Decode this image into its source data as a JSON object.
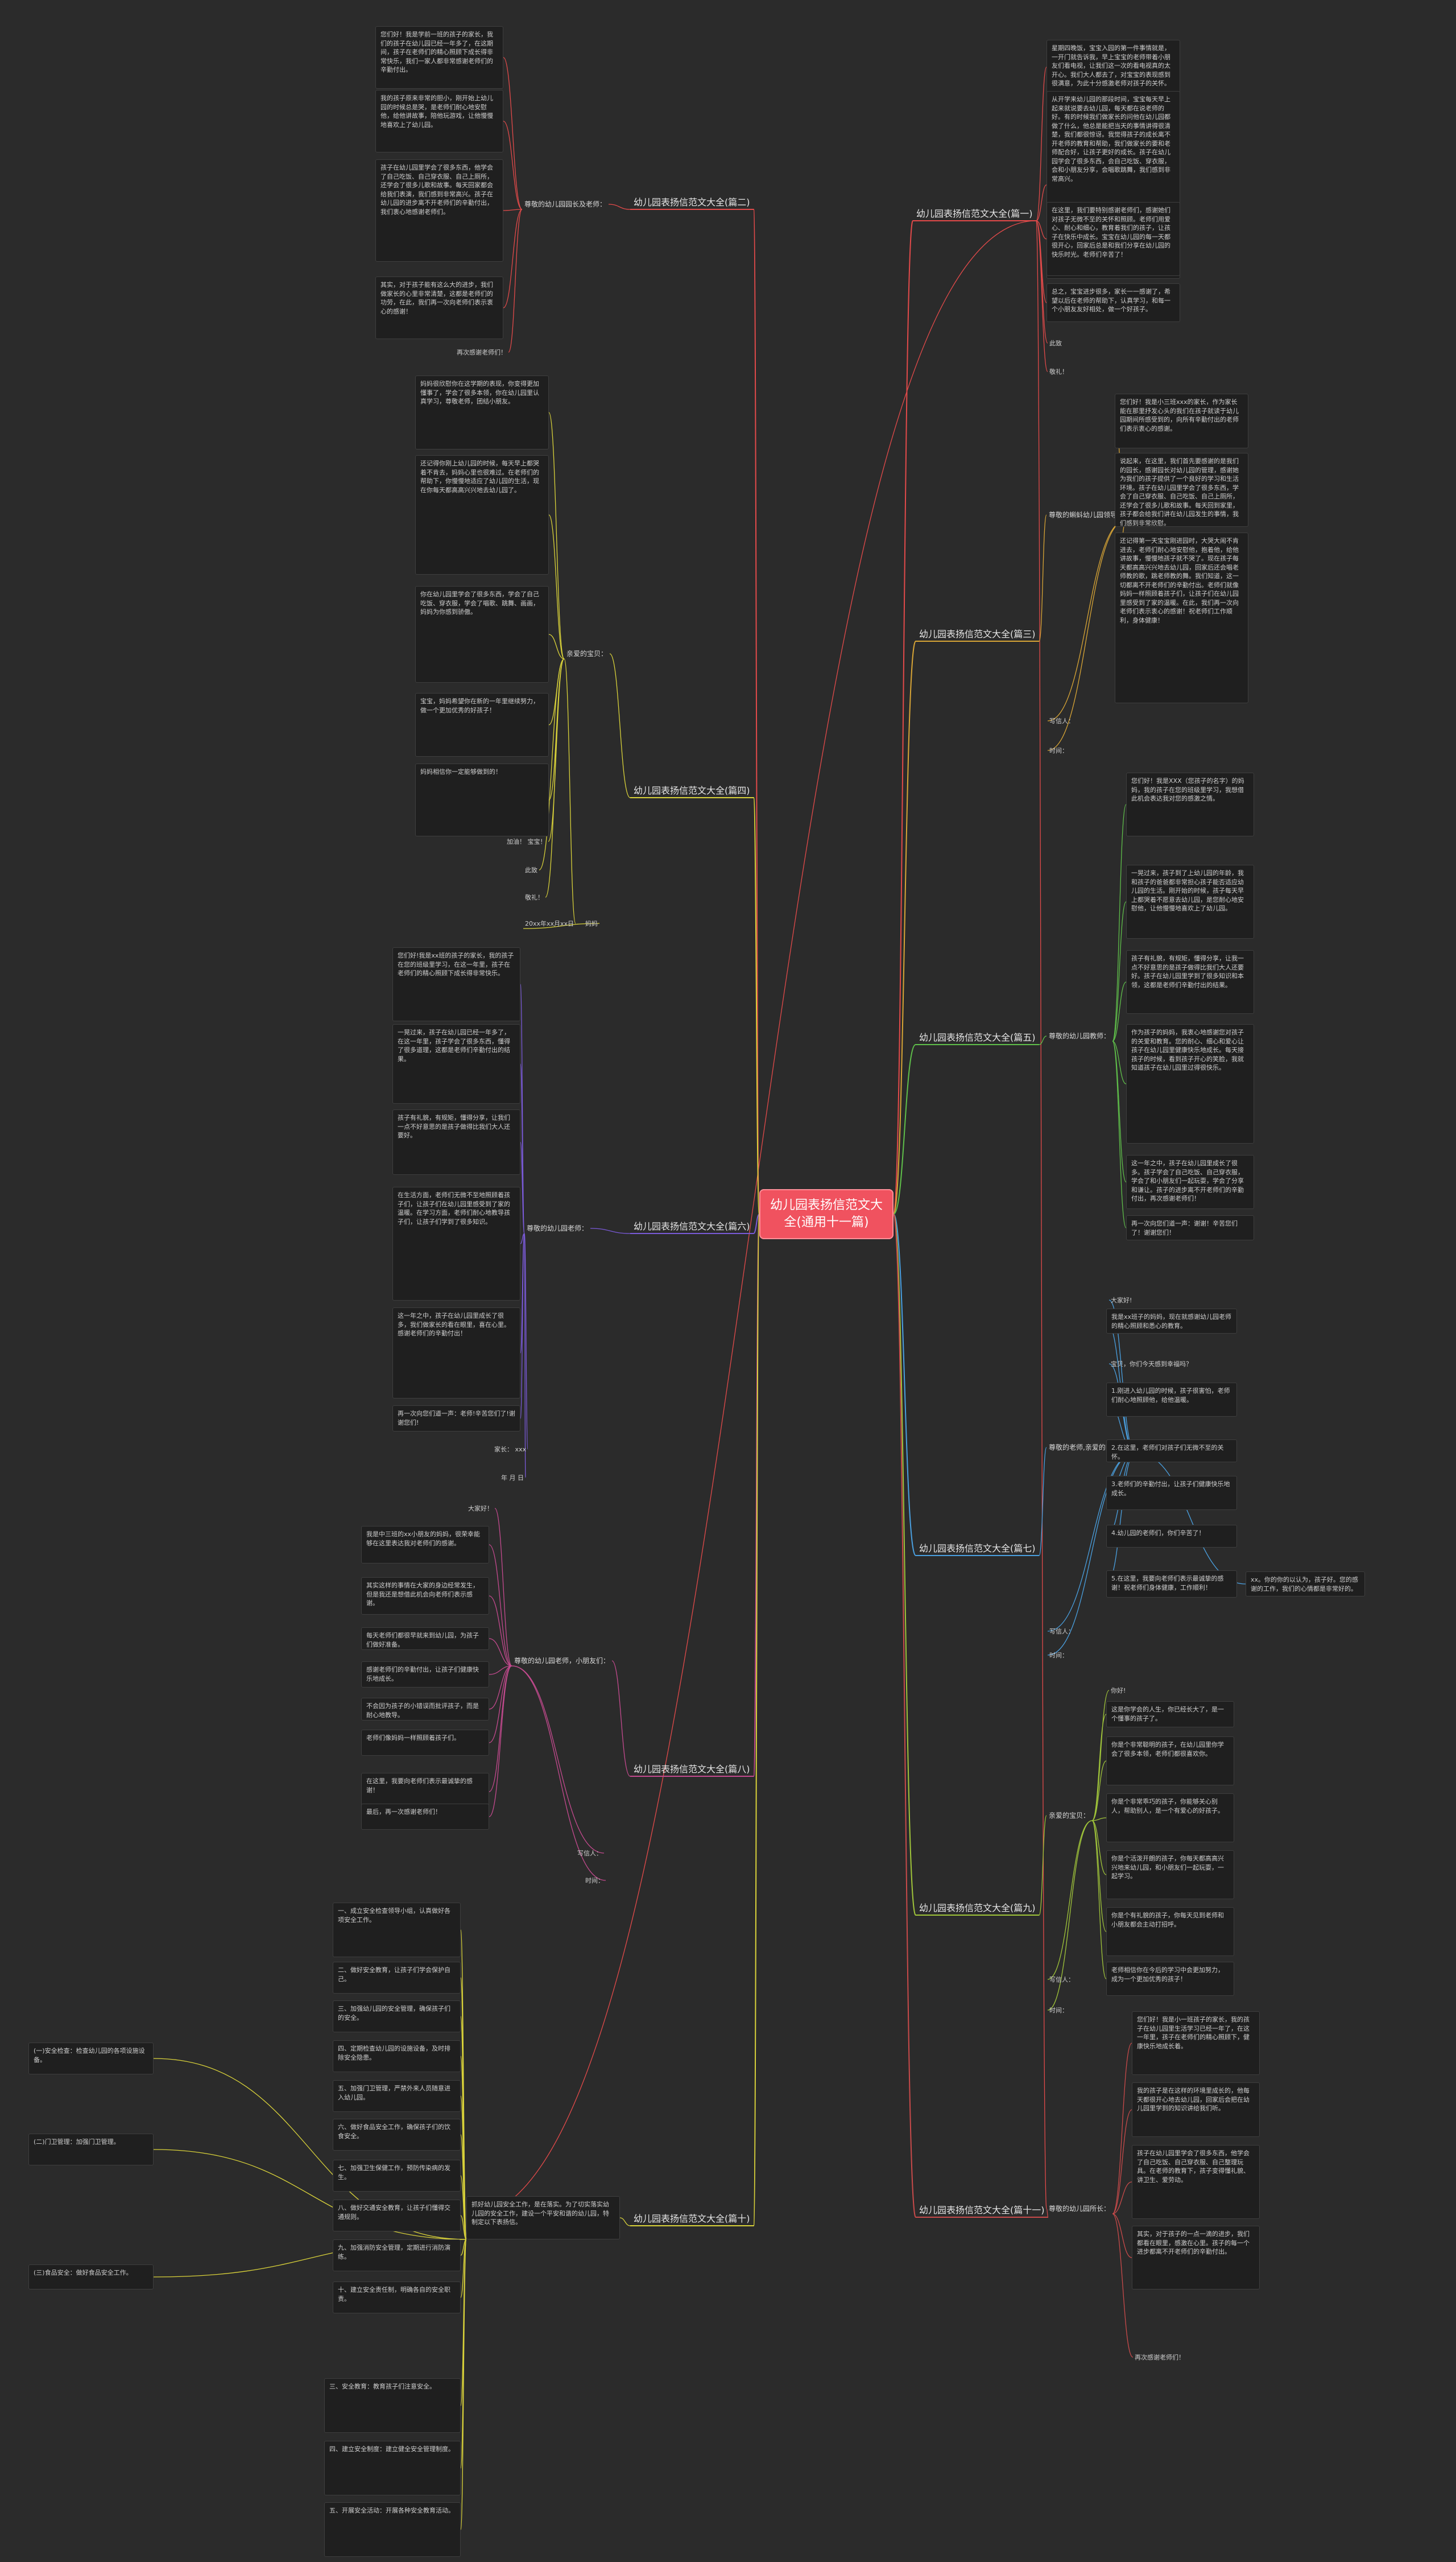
{
  "root": {
    "title": "幼儿园表扬信范文大全(通用十一篇)"
  },
  "colors": {
    "root": "#f0525f",
    "b1": "#e24a4a",
    "b2": "#e24a4a",
    "b3": "#d8a536",
    "b4": "#d9d23a",
    "b5": "#5fbf4a",
    "b6": "#7a5ad8",
    "b7": "#4aa0e0",
    "b8": "#c44a8f",
    "b9": "#a0c53a",
    "b10": "#d9d23a",
    "b11": "#c84a4a"
  },
  "branches": {
    "b1": {
      "label": "幼儿园表扬信范文大全(篇一)",
      "paragraphs": [
        "星期四晚饭，宝宝入园的第一件事情就是，一开门就告诉我，早上宝宝的老师带着小朋友们看电视，让我们这一次的看电视真的太开心。我们大人都去了，对宝宝的表现感到很满意，为此十分感激老师对孩子的关怀。",
        "从开学来幼儿园的那段时间，宝宝每天早上起来就说要去幼儿园，每天都在说老师的好。有的时候我们做家长的问他在幼儿园都做了什么，他总是能把当天的事情讲得很清楚，我们都很惊讶。我觉得孩子的成长离不开老师的教育和帮助，我们做家长的要和老师配合好，让孩子更好的成长。孩子在幼儿园学会了很多东西，会自己吃饭、穿衣服，会和小朋友分享，会唱歌跳舞，我们感到非常高兴。",
        "在这里，我们要特别感谢老师们，感谢她们对孩子无微不至的关怀和照顾。老师们用爱心、耐心和细心，教育着我们的孩子，让孩子在快乐中成长。宝宝在幼儿园的每一天都很开心，回家后总是和我们分享在幼儿园的快乐时光。老师们辛苦了！",
        "总之，宝宝进步很多，家长一一感谢了，希望以后在老师的帮助下，认真学习，和每一个小朋友友好相处，做一个好孩子。",
        "此致",
        "敬礼！"
      ]
    },
    "b3": {
      "label": "幼儿园表扬信范文大全(篇三)",
      "sub_label": "尊敬的蝌蚪幼儿园领导：",
      "paragraphs": [
        "您们好！我是小三班xxx的家长，作为家长能在那里抒发心头的我们在孩子就读于幼儿园期间所感受到的，向所有辛勤付出的老师们表示衷心的感谢。",
        "说起来，在这里，我们首先要感谢的是我们的园长，感谢园长对幼儿园的管理，感谢她为我们的孩子提供了一个良好的学习和生活环境。孩子在幼儿园里学会了很多东西，学会了自己穿衣服、自己吃饭、自己上厕所，还学会了很多儿歌和故事。每天回到家里，孩子都会给我们讲在幼儿园发生的事情，我们感到非常欣慰。",
        "还记得第一天宝宝刚进园时，大哭大闹不肯进去，老师们耐心地安慰他，抱着他，给他讲故事，慢慢地孩子就不哭了。现在孩子每天都高高兴兴地去幼儿园，回家后还会唱老师教的歌，跳老师教的舞。我们知道，这一切都离不开老师们的辛勤付出。老师们就像妈妈一样照顾着孩子们，让孩子们在幼儿园里感受到了家的温暖。在此，我们再一次向老师们表示衷心的感谢！祝老师们工作顺利，身体健康！"
      ],
      "writer": "写信人：",
      "time": "时间："
    },
    "b5": {
      "label": "幼儿园表扬信范文大全(篇五)",
      "sub_label": "尊敬的幼儿园教师：",
      "paragraphs": [
        "您们好！我是XXX（您孩子的名字）的妈妈，我的孩子在您的班级里学习，我想借此机会表达我对您的感激之情。",
        "一晃过来，孩子到了上幼儿园的年龄，我和孩子的爸爸都非常担心孩子能否适应幼儿园的生活。刚开始的时候，孩子每天早上都哭着不愿意去幼儿园，是您耐心地安慰他，让他慢慢地喜欢上了幼儿园。",
        "孩子有礼貌，有规矩，懂得分享，让我一点不好意思的是孩子做得比我们大人还要好。孩子在幼儿园里学到了很多知识和本领，这都是老师们辛勤付出的结果。",
        "作为孩子的妈妈，我衷心地感谢您对孩子的关爱和教育。您的耐心、细心和爱心让孩子在幼儿园里健康快乐地成长。每天接孩子的时候，看到孩子开心的笑脸，我就知道孩子在幼儿园里过得很快乐。",
        "这一年之中，孩子在幼儿园里成长了很多。孩子学会了自己吃饭、自己穿衣服，学会了和小朋友们一起玩耍，学会了分享和谦让。孩子的进步离不开老师们的辛勤付出，再次感谢老师们！",
        "再一次向您们道一声：谢谢！辛苦您们了！谢谢您们！"
      ]
    },
    "b7": {
      "label": "幼儿园表扬信范文大全(篇七)",
      "sub_label": "尊敬的老师,亲爱的同学们：",
      "paragraphs": [
        "大家好!",
        "我是xx班子的妈妈，现在就感谢幼儿园老师的精心照顾和悉心的教育。",
        "宝贝，你们今天感到幸福吗？",
        "1.刚进入幼儿园的时候，孩子很害怕，老师们耐心地照顾他，给他温暖。",
        "2.在这里，老师们对孩子们无微不至的关怀。",
        "3.老师们的辛勤付出，让孩子们健康快乐地成长。",
        "4.幼儿园的老师们，你们辛苦了！",
        "5.在这里，我要向老师们表示最诚挚的感谢！祝老师们身体健康，工作顺利！"
      ],
      "side_note": "xx。你的你的以认为，孩子好。您的感谢的工作，我们的心情都是非常好的。",
      "writer": "写信人：",
      "time": "时间："
    },
    "b9": {
      "label": "幼儿园表扬信范文大全(篇九)",
      "sub_label": "亲爱的宝贝：",
      "paragraphs": [
        "你好!",
        "这是你学会的人生，你已经长大了，是一个懂事的孩子了。",
        "你是个非常聪明的孩子，在幼儿园里你学会了很多本领，老师们都很喜欢你。",
        "你是个非常乖巧的孩子，你能够关心别人，帮助别人，是一个有爱心的好孩子。",
        "你是个活泼开朗的孩子，你每天都高高兴兴地来幼儿园，和小朋友们一起玩耍，一起学习。",
        "你是个有礼貌的孩子，你每天见到老师和小朋友都会主动打招呼。",
        "老师相信你在今后的学习中会更加努力，成为一个更加优秀的孩子！"
      ],
      "writer": "写信人：",
      "time": "时间："
    },
    "b11": {
      "label": "幼儿园表扬信范文大全(篇十一)",
      "sub_label": "尊敬的幼儿园所长：",
      "paragraphs": [
        "您们好！我是小一班孩子的家长，我的孩子在幼儿园里生活学习已经一年了，在这一年里，孩子在老师们的精心照顾下，健康快乐地成长着。",
        "我的孩子是在这样的环境里成长的，他每天都很开心地去幼儿园，回家后会把在幼儿园里学到的知识讲给我们听。",
        "孩子在幼儿园里学会了很多东西，他学会了自己吃饭、自己穿衣服、自己整理玩具。在老师的教育下，孩子变得懂礼貌、讲卫生、爱劳动。",
        "其实，对于孩子的一点一滴的进步，我们都看在眼里，感激在心里。孩子的每一个进步都离不开老师们的辛勤付出。",
        "再次感谢老师们！"
      ]
    },
    "b2": {
      "label": "幼儿园表扬信范文大全(篇二)",
      "sub_label": "尊敬的幼儿园园长及老师：",
      "paragraphs": [
        "您们好！我是学前一班的孩子的家长，我们的孩子在幼儿园已经一年多了，在这期间，孩子在老师们的精心照顾下成长得非常快乐，我们一家人都非常感谢老师们的辛勤付出。",
        "我的孩子原来非常的胆小，刚开始上幼儿园的时候总是哭，是老师们耐心地安慰他，给他讲故事，陪他玩游戏，让他慢慢地喜欢上了幼儿园。",
        "孩子在幼儿园里学会了很多东西，他学会了自己吃饭、自己穿衣服、自己上厕所，还学会了很多儿歌和故事。每天回家都会给我们表演，我们感到非常高兴。孩子在幼儿园的进步离不开老师们的辛勤付出，我们衷心地感谢老师们。",
        "其实，对于孩子能有这么大的进步，我们做家长的心里非常清楚，这都是老师们的功劳，在此，我们再一次向老师们表示衷心的感谢！"
      ],
      "closing": "再次感谢老师们！"
    },
    "b4": {
      "label": "幼儿园表扬信范文大全(篇四)",
      "sub_label": "亲爱的宝贝：",
      "paragraphs": [
        "妈妈很欣慰你在这学期的表现，你变得更加懂事了，学会了很多本领，你在幼儿园里认真学习，尊敬老师，团结小朋友。",
        "还记得你刚上幼儿园的时候，每天早上都哭着不肯去，妈妈心里也很难过。在老师们的帮助下，你慢慢地适应了幼儿园的生活，现在你每天都高高兴兴地去幼儿园了。",
        "你在幼儿园里学会了很多东西，学会了自己吃饭、穿衣服，学会了唱歌、跳舞、画画，妈妈为你感到骄傲。",
        "宝宝，妈妈希望你在新的一年里继续努力，做一个更加优秀的好孩子！",
        "妈妈相信你一定能够做到的！"
      ],
      "closing_1": "加油！ 宝宝！",
      "closing_2": "此致",
      "closing_3": "敬礼！",
      "footer": "20xx年xx月xx日",
      "footer_sign": "妈妈"
    },
    "b6": {
      "label": "幼儿园表扬信范文大全(篇六)",
      "sub_label": "尊敬的幼儿园老师：",
      "paragraphs": [
        "您们好!我是xx班的孩子的家长，我的孩子在您的班级里学习，在这一年里，孩子在老师们的精心照顾下成长得非常快乐。",
        "一晃过来，孩子在幼儿园已经一年多了，在这一年里，孩子学会了很多东西，懂得了很多道理，这都是老师们辛勤付出的结果。",
        "孩子有礼貌，有规矩，懂得分享，让我们一点不好意思的是孩子做得比我们大人还要好。",
        "在生活方面，老师们无微不至地照顾着孩子们，让孩子们在幼儿园里感受到了家的温暖。在学习方面，老师们耐心地教导孩子们，让孩子们学到了很多知识。",
        "这一年之中，孩子在幼儿园里成长了很多，我们做家长的看在眼里，喜在心里。感谢老师们的辛勤付出！",
        "再一次向您们道一声：老师!辛苦您们了!谢谢您们!"
      ],
      "sign_1": "家长： xxx",
      "sign_2": "年 月 日"
    },
    "b8": {
      "label": "幼儿园表扬信范文大全(篇八)",
      "sub_label": "尊敬的幼儿园老师，小朋友们：",
      "greeting": "大家好！",
      "paragraphs": [
        "我是中三班的xx小朋友的妈妈，很荣幸能够在这里表达我对老师们的感谢。",
        "其实这样的事情在大家的身边经常发生，但是我还是想借此机会向老师们表示感谢。",
        "每天老师们都很早就来到幼儿园，为孩子们做好准备。",
        "感谢老师们的辛勤付出，让孩子们健康快乐地成长。",
        "不会因为孩子的小错误而批评孩子，而是耐心地教导。",
        "老师们像妈妈一样照顾着孩子们。",
        "在这里，我要向老师们表示最诚挚的感谢！",
        "最后，再一次感谢老师们！"
      ],
      "writer": "写信人：",
      "time": "时间："
    },
    "b10": {
      "label": "幼儿园表扬信范文大全(篇十)",
      "sub_label": "抓好幼儿园安全工作，是在落实。为了切实落实幼儿园的安全工作，建设一个平安和谐的幼儿园，特制定以下表扬信。",
      "items": [
        "一、成立安全检查领导小组，认真做好各项安全工作。",
        "二、做好安全教育，让孩子们学会保护自己。",
        "三、加强幼儿园的安全管理，确保孩子们的安全。",
        "四、定期检查幼儿园的设施设备，及时排除安全隐患。",
        "五、加强门卫管理，严禁外来人员随意进入幼儿园。",
        "六、做好食品安全工作，确保孩子们的饮食安全。",
        "七、加强卫生保健工作，预防传染病的发生。",
        "八、做好交通安全教育，让孩子们懂得交通规则。",
        "九、加强消防安全管理，定期进行消防演练。",
        "十、建立安全责任制，明确各自的安全职责。"
      ],
      "side_notes": [
        "(一)安全检查：检查幼儿园的各项设施设备。",
        "(二)门卫管理：加强门卫管理。",
        "(三)食品安全：做好食品安全工作。"
      ],
      "bottom_items": [
        "三、安全教育：教育孩子们注意安全。",
        "四、建立安全制度：建立健全安全管理制度。",
        "五、开展安全活动：开展各种安全教育活动。"
      ]
    }
  }
}
